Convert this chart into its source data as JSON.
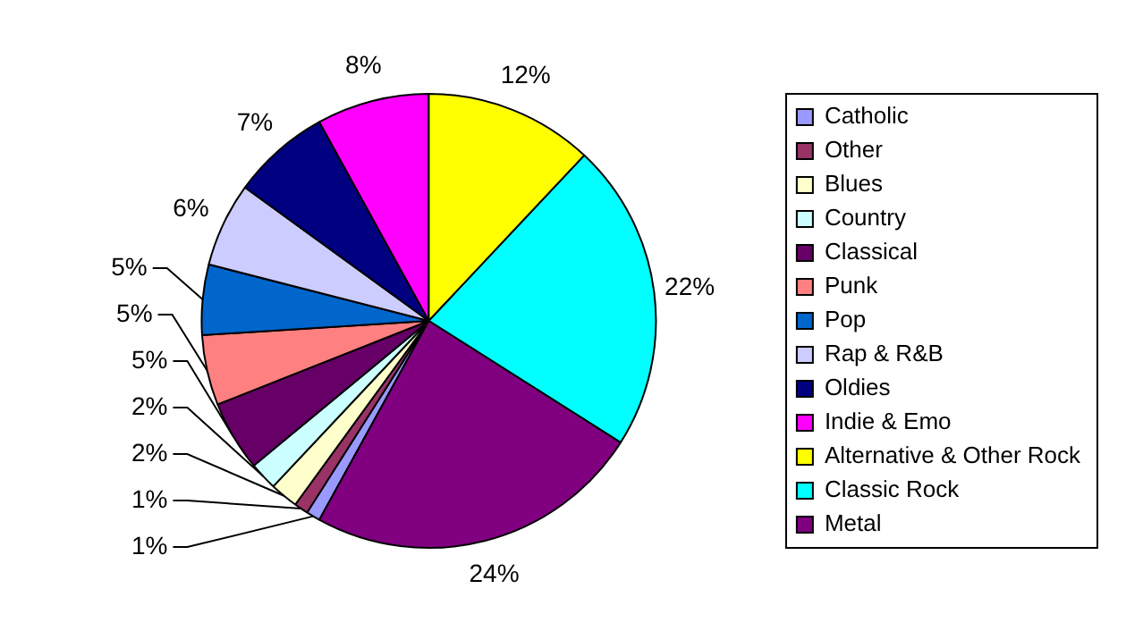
{
  "chart_data": {
    "type": "pie",
    "categories": [
      "Catholic",
      "Other",
      "Blues",
      "Country",
      "Classical",
      "Punk",
      "Pop",
      "Rap & R&B",
      "Oldies",
      "Indie & Emo",
      "Alternative & Other Rock",
      "Classic Rock",
      "Metal"
    ],
    "values": [
      1,
      1,
      2,
      2,
      5,
      5,
      5,
      6,
      7,
      8,
      12,
      22,
      24
    ],
    "colors": [
      "#9999ff",
      "#993366",
      "#ffffcc",
      "#ccffff",
      "#660066",
      "#ff8080",
      "#0066cc",
      "#ccccff",
      "#000080",
      "#ff00ff",
      "#ffff00",
      "#00ffff",
      "#800080"
    ],
    "value_labels": [
      "1%",
      "1%",
      "2%",
      "2%",
      "5%",
      "5%",
      "5%",
      "6%",
      "7%",
      "8%",
      "12%",
      "22%",
      "24%"
    ],
    "legend": "right"
  }
}
